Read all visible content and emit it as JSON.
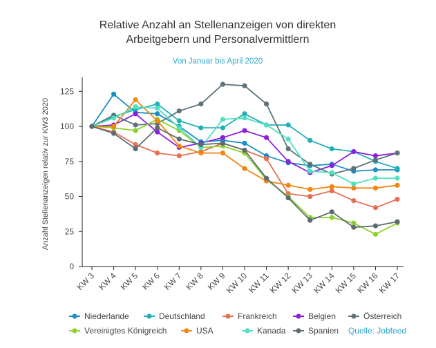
{
  "chart_data": {
    "type": "line",
    "title_line1": "Relative Anzahl an Stellenanzeigen von direkten",
    "title_line2": "Arbeitgebern und Personalvermittlern",
    "subtitle": "Von Januar bis April 2020",
    "ylabel": "Anzahl Stellenanzeigen relativ zur KW3 2020",
    "xlabel": "",
    "source": "Quelle: Jobfeed",
    "ylim": [
      0,
      135
    ],
    "yticks": [
      0,
      25,
      50,
      75,
      100,
      125
    ],
    "grid": false,
    "legend_position": "bottom",
    "categories": [
      "KW 3",
      "KW 4",
      "KW 5",
      "KW 6",
      "KW 7",
      "KW 8",
      "KW 9",
      "KW 10",
      "KW 11",
      "KW 12",
      "KW 13",
      "KW 14",
      "KW 15",
      "KW 16",
      "KW 17"
    ],
    "series": [
      {
        "name": "Niederlande",
        "color": "#1a8fc4",
        "values": [
          100,
          123,
          110,
          109,
          100,
          89,
          90,
          88,
          79,
          74,
          72,
          73,
          68,
          69,
          69
        ]
      },
      {
        "name": "Deutschland",
        "color": "#1fb0b8",
        "values": [
          100,
          107,
          112,
          116,
          104,
          99,
          99,
          109,
          101,
          101,
          90,
          84,
          82,
          75,
          70
        ]
      },
      {
        "name": "Frankreich",
        "color": "#e76f51",
        "values": [
          100,
          96,
          87,
          81,
          79,
          82,
          88,
          83,
          77,
          52,
          50,
          54,
          47,
          42,
          48
        ]
      },
      {
        "name": "Belgien",
        "color": "#8b1fe0",
        "values": [
          100,
          101,
          109,
          96,
          85,
          88,
          92,
          97,
          92,
          75,
          67,
          72,
          82,
          79,
          81
        ]
      },
      {
        "name": "Österreich",
        "color": "#5b7379",
        "values": [
          100,
          108,
          101,
          102,
          111,
          116,
          130,
          129,
          116,
          84,
          73,
          66,
          70,
          76,
          81
        ]
      },
      {
        "name": "Vereinigtes Königreich",
        "color": "#8ed12d",
        "values": [
          100,
          99,
          97,
          105,
          97,
          85,
          86,
          81,
          62,
          50,
          35,
          35,
          31,
          23,
          31
        ]
      },
      {
        "name": "USA",
        "color": "#f2860f",
        "values": [
          100,
          100,
          119,
          104,
          86,
          81,
          81,
          70,
          61,
          58,
          55,
          57,
          56,
          56,
          58
        ]
      },
      {
        "name": "Kanada",
        "color": "#4fe0c0",
        "values": [
          100,
          106,
          114,
          113,
          99,
          85,
          105,
          106,
          101,
          91,
          68,
          67,
          59,
          63,
          63
        ]
      },
      {
        "name": "Spanien",
        "color": "#5d6b72",
        "values": [
          100,
          95,
          84,
          99,
          91,
          87,
          88,
          83,
          63,
          49,
          33,
          39,
          28,
          29,
          32
        ]
      }
    ]
  }
}
